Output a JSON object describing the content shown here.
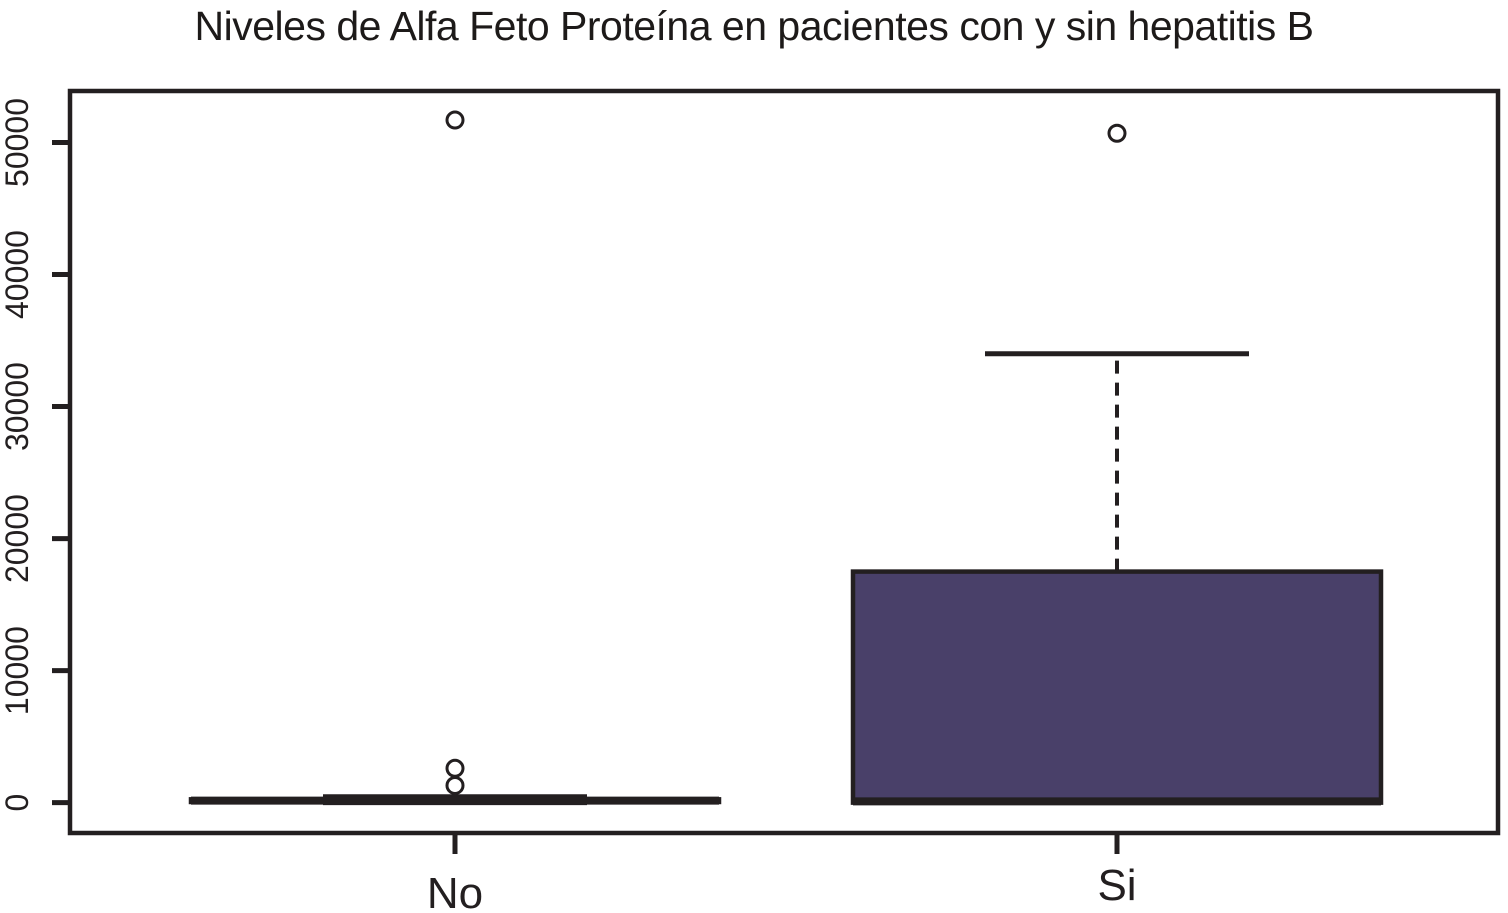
{
  "chart_data": {
    "type": "boxplot",
    "title": "Niveles de Alfa Feto Proteína en pacientes con y sin hepatitis B",
    "categories": [
      "No",
      "Si"
    ],
    "xlabel": "",
    "ylabel": "",
    "ylim": [
      -2300,
      53900
    ],
    "yticks": [
      0,
      10000,
      20000,
      30000,
      40000,
      50000
    ],
    "grid": false,
    "legend": "none",
    "colors": {
      "box_fill": "#494069",
      "line": "#231f20",
      "background": "#ffffff"
    },
    "series": [
      {
        "name": "No",
        "whisker_low": 0,
        "q1": 50,
        "median": 150,
        "q3": 250,
        "whisker_high": 450,
        "outliers": [
          1300,
          2600,
          51700
        ]
      },
      {
        "name": "Si",
        "whisker_low": 0,
        "q1": 0,
        "median": 100,
        "q3": 17500,
        "whisker_high": 34000,
        "outliers": [
          50700
        ]
      }
    ]
  }
}
